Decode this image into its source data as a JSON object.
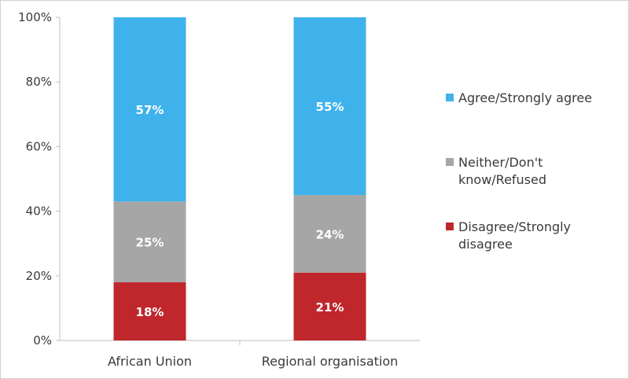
{
  "chart_data": {
    "type": "bar",
    "stacked": true,
    "categories": [
      "African Union",
      "Regional organisation"
    ],
    "series": [
      {
        "name": "Disagree/Strongly disagree",
        "values": [
          18,
          21
        ],
        "labels": [
          "18%",
          "21%"
        ],
        "color": "#c0272d"
      },
      {
        "name": "Neither/Don't know/Refused",
        "values": [
          25,
          24
        ],
        "labels": [
          "25%",
          "24%"
        ],
        "color": "#a6a6a6"
      },
      {
        "name": "Agree/Strongly agree",
        "values": [
          57,
          55
        ],
        "labels": [
          "57%",
          "55%"
        ],
        "color": "#3fb2ec"
      }
    ],
    "legend_order": [
      "Agree/Strongly agree",
      "Neither/Don't know/Refused",
      "Disagree/Strongly disagree"
    ],
    "legend_lines": {
      "Agree/Strongly agree": [
        "Agree/Strongly agree"
      ],
      "Neither/Don't know/Refused": [
        "Neither/Don't",
        "know/Refused"
      ],
      "Disagree/Strongly disagree": [
        "Disagree/Strongly",
        "disagree"
      ]
    },
    "yticks": [
      "0%",
      "20%",
      "40%",
      "60%",
      "80%",
      "100%"
    ],
    "ylim": [
      0,
      100
    ],
    "grid": false,
    "legend_position": "right",
    "title": "",
    "xlabel": "",
    "ylabel": ""
  }
}
